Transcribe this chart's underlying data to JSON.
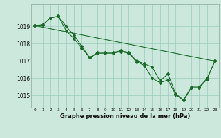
{
  "title": "Graphe pression niveau de la mer (hPa)",
  "background_color": "#cce8dc",
  "grid_color": "#99ccbb",
  "line_color": "#1a6b2a",
  "x_labels": [
    "0",
    "1",
    "2",
    "3",
    "4",
    "5",
    "6",
    "7",
    "8",
    "9",
    "10",
    "11",
    "12",
    "13",
    "14",
    "15",
    "16",
    "17",
    "18",
    "19",
    "20",
    "21",
    "22",
    "23"
  ],
  "ylim_min": 1014.3,
  "ylim_max": 1020.3,
  "yticks": [
    1015,
    1016,
    1017,
    1018,
    1019
  ],
  "line_smooth": [
    1019.05,
    1019.08,
    1019.5,
    1019.6,
    1019.05,
    1018.55,
    1018.2,
    1017.85,
    1017.7,
    1017.55,
    1017.45,
    1017.4,
    1017.35,
    1017.3,
    1017.25,
    1017.2,
    1017.15,
    1017.1,
    1017.05,
    1017.0,
    1016.95,
    1016.9,
    1017.0,
    1017.0
  ],
  "line_detail1": [
    1019.05,
    1019.1,
    1019.5,
    1019.6,
    1019.0,
    1018.5,
    1017.85,
    1017.2,
    1017.5,
    1017.5,
    1017.5,
    1017.6,
    1017.5,
    1017.0,
    1016.85,
    1016.65,
    1015.85,
    1016.25,
    1015.1,
    1014.75,
    1015.5,
    1015.5,
    1016.0,
    1017.0
  ],
  "line_detail2": [
    1019.05,
    1019.1,
    1019.5,
    1019.6,
    1018.75,
    1018.3,
    1017.75,
    1017.2,
    1017.45,
    1017.45,
    1017.45,
    1017.55,
    1017.45,
    1016.95,
    1016.75,
    1016.0,
    1015.75,
    1015.9,
    1015.05,
    1014.72,
    1015.45,
    1015.45,
    1015.95,
    1017.0
  ]
}
